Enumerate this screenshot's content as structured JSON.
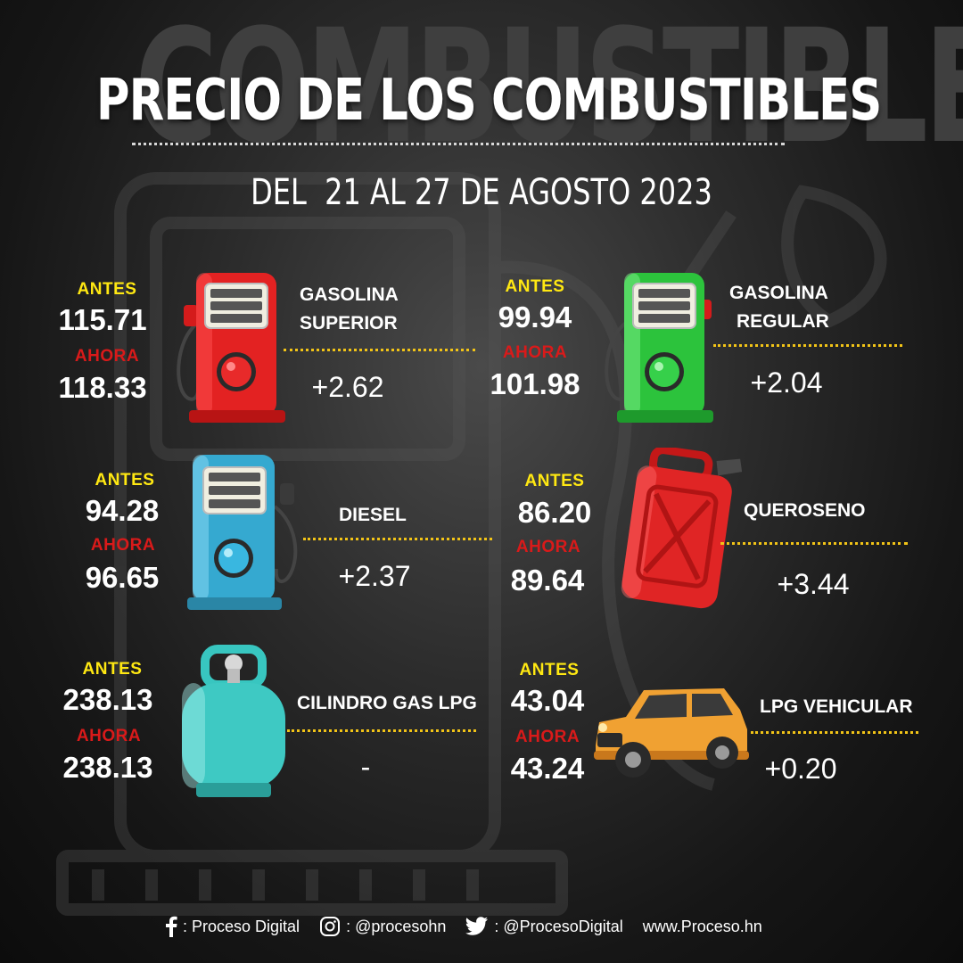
{
  "background_word": "COMBUSTIBLES",
  "title": "PRECIO DE LOS COMBUSTIBLES",
  "subtitle": "DEL  21 AL 27 DE AGOSTO 2023",
  "labels": {
    "antes": "ANTES",
    "ahora": "AHORA"
  },
  "colors": {
    "antes": "#ffe812",
    "ahora": "#d91a1a",
    "divider": "#f2c417"
  },
  "fuels": [
    {
      "name_line1": "GASOLINA",
      "name_line2": "SUPERIOR",
      "antes": "115.71",
      "ahora": "118.33",
      "change": "+2.62",
      "icon": "red-fuel-pump-icon"
    },
    {
      "name_line1": "GASOLINA",
      "name_line2": "REGULAR",
      "antes": "99.94",
      "ahora": "101.98",
      "change": "+2.04",
      "icon": "green-fuel-pump-icon"
    },
    {
      "name": "DIESEL",
      "antes": "94.28",
      "ahora": "96.65",
      "change": "+2.37",
      "icon": "blue-fuel-pump-icon"
    },
    {
      "name": "QUEROSENO",
      "antes": "86.20",
      "ahora": "89.64",
      "change": "+3.44",
      "icon": "red-jerrycan-icon"
    },
    {
      "name": "CILINDRO GAS LPG",
      "antes": "238.13",
      "ahora": "238.13",
      "change": "-",
      "icon": "gas-cylinder-icon"
    },
    {
      "name": "LPG VEHICULAR",
      "antes": "43.04",
      "ahora": "43.24",
      "change": "+0.20",
      "icon": "orange-car-icon"
    }
  ],
  "footer": {
    "facebook": ": Proceso Digital",
    "instagram": ": @procesohn",
    "twitter": ": @ProcesoDigital",
    "website": "www.Proceso.hn"
  }
}
